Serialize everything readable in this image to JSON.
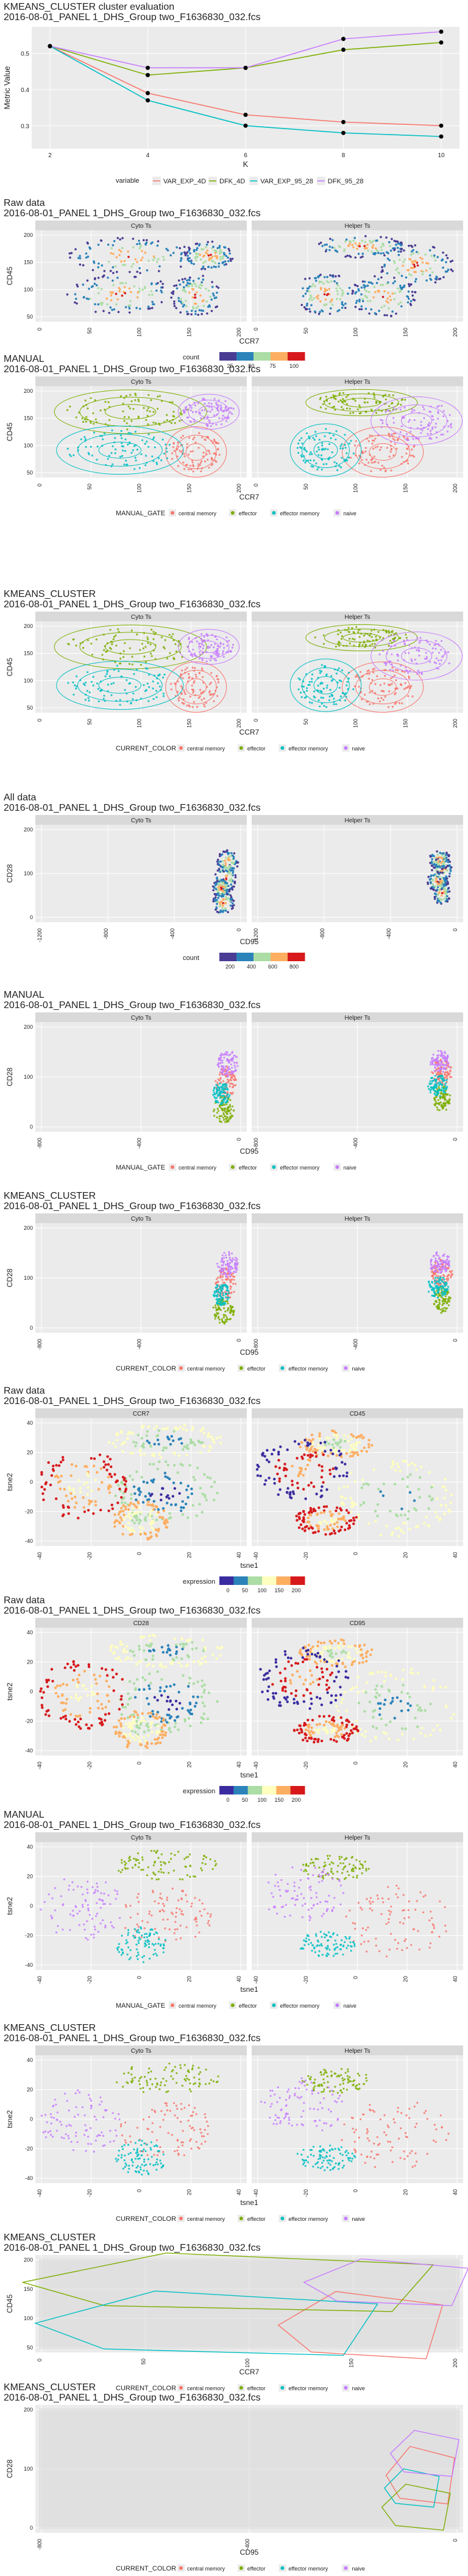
{
  "file": "2016-08-01_PANEL 1_DHS_Group two_F1636830_032.fcs",
  "eval": {
    "title": "KMEANS_CLUSTER cluster evaluation",
    "subtitle": "2016-08-01_PANEL 1_DHS_Group two_F1636830_032.fcs",
    "ylabel": "Metric Value",
    "xlabel": "K",
    "y_ticks": [
      "0.3",
      "0.4",
      "0.5"
    ],
    "x_ticks": [
      "2",
      "4",
      "6",
      "8",
      "10"
    ],
    "legend_title": "variable",
    "legend_items": [
      "VAR_EXP_4D",
      "DFK_4D",
      "VAR_EXP_95_28",
      "DFK_95_28"
    ]
  },
  "palettes": {
    "eval_series": [
      "#f8766d",
      "#7cae00",
      "#00bfc4",
      "#c77cff"
    ],
    "populations": [
      "#f8766d",
      "#7cae00",
      "#00bfc4",
      "#c77cff"
    ],
    "density": [
      "#4a3c94",
      "#2b83ba",
      "#abdda4",
      "#fdae61",
      "#d7191c"
    ],
    "expression": [
      "#3a2ca0",
      "#2b83ba",
      "#abdda4",
      "#ffffbf",
      "#fdae61",
      "#d7191c"
    ],
    "panel_bg": "#ebebeb",
    "strip_bg": "#d9d9d9"
  },
  "pop_labels": [
    "central memory",
    "effector",
    "effector memory",
    "naive"
  ],
  "plots": [
    {
      "title": "Raw data",
      "strips": [
        "Cyto Ts",
        "Helper Ts"
      ],
      "xlabel": "CCR7",
      "ylabel": "CD45",
      "x_ticks": [
        "0",
        "50",
        "100",
        "150",
        "200"
      ],
      "y_ticks": [
        "200",
        "150",
        "100",
        "50"
      ],
      "legend_title": "count",
      "legend_ticks": [
        "25",
        "50",
        "75",
        "100"
      ]
    },
    {
      "title": "MANUAL",
      "strips": [
        "Cyto Ts",
        "Helper Ts"
      ],
      "xlabel": "CCR7",
      "ylabel": "CD45",
      "x_ticks": [
        "0",
        "50",
        "100",
        "150",
        "200"
      ],
      "y_ticks": [
        "200",
        "150",
        "100",
        "50"
      ],
      "legend_title": "MANUAL_GATE"
    },
    {
      "title": "KMEANS_CLUSTER",
      "strips": [
        "Cyto Ts",
        "Helper Ts"
      ],
      "xlabel": "CCR7",
      "ylabel": "CD45",
      "x_ticks": [
        "0",
        "50",
        "100",
        "150",
        "200"
      ],
      "y_ticks": [
        "200",
        "150",
        "100",
        "50"
      ],
      "legend_title": "CURRENT_COLOR"
    },
    {
      "title": "All data",
      "strips": [
        "Cyto Ts",
        "Helper Ts"
      ],
      "xlabel": "CD95",
      "ylabel": "CD28",
      "x_ticks": [
        "-1200",
        "-800",
        "-400",
        "0"
      ],
      "y_ticks": [
        "200",
        "100",
        "0"
      ],
      "legend_title": "count",
      "legend_ticks": [
        "200",
        "400",
        "600",
        "800"
      ]
    },
    {
      "title": "MANUAL",
      "strips": [
        "Cyto Ts",
        "Helper Ts"
      ],
      "xlabel": "CD95",
      "ylabel": "CD28",
      "x_ticks": [
        "-800",
        "-400",
        "0"
      ],
      "y_ticks": [
        "200",
        "100",
        "0"
      ],
      "legend_title": "MANUAL_GATE"
    },
    {
      "title": "KMEANS_CLUSTER",
      "strips": [
        "Cyto Ts",
        "Helper Ts"
      ],
      "xlabel": "CD95",
      "ylabel": "CD28",
      "x_ticks": [
        "-800",
        "-400",
        "0"
      ],
      "y_ticks": [
        "200",
        "100",
        "0"
      ],
      "legend_title": "CURRENT_COLOR"
    },
    {
      "title": "Raw data",
      "strips": [
        "CCR7",
        "CD45"
      ],
      "xlabel": "tsne1",
      "ylabel": "tsne2",
      "x_ticks": [
        "-40",
        "-20",
        "0",
        "20",
        "40"
      ],
      "y_ticks": [
        "40",
        "20",
        "0",
        "-20",
        "-40"
      ],
      "legend_title": "expression",
      "legend_ticks": [
        "0",
        "50",
        "100",
        "150",
        "200"
      ]
    },
    {
      "title": "Raw data",
      "strips": [
        "CD28",
        "CD95"
      ],
      "xlabel": "tsne1",
      "ylabel": "tsne2",
      "x_ticks": [
        "-40",
        "-20",
        "0",
        "20",
        "40"
      ],
      "y_ticks": [
        "40",
        "20",
        "0",
        "-20",
        "-40"
      ],
      "legend_title": "expression",
      "legend_ticks": [
        "0",
        "50",
        "100",
        "150",
        "200"
      ]
    },
    {
      "title": "MANUAL",
      "strips": [
        "Cyto Ts",
        "Helper Ts"
      ],
      "xlabel": "tsne1",
      "ylabel": "tsne2",
      "x_ticks": [
        "-40",
        "-20",
        "0",
        "20",
        "40"
      ],
      "y_ticks": [
        "40",
        "20",
        "0",
        "-20",
        "-40"
      ],
      "legend_title": "MANUAL_GATE"
    },
    {
      "title": "KMEANS_CLUSTER",
      "strips": [
        "Cyto Ts",
        "Helper Ts"
      ],
      "xlabel": "tsne1",
      "ylabel": "tsne2",
      "x_ticks": [
        "-40",
        "-20",
        "0",
        "20",
        "40"
      ],
      "y_ticks": [
        "40",
        "20",
        "0",
        "-20",
        "-40"
      ],
      "legend_title": "CURRENT_COLOR"
    },
    {
      "title": "KMEANS_CLUSTER",
      "strips": [],
      "xlabel": "CCR7",
      "ylabel": "CD45",
      "x_ticks": [
        "0",
        "50",
        "100",
        "150",
        "200"
      ],
      "y_ticks": [
        "200",
        "150",
        "100",
        "50"
      ],
      "legend_title": "CURRENT_COLOR"
    },
    {
      "title": "KMEANS_CLUSTER",
      "strips": [],
      "xlabel": "CD95",
      "ylabel": "CD28",
      "x_ticks": [
        "-800",
        "-400",
        "0"
      ],
      "y_ticks": [
        "200",
        "100",
        "0"
      ],
      "legend_title": "CURRENT_COLOR"
    }
  ],
  "chart_data": [
    {
      "type": "line",
      "title": "KMEANS_CLUSTER cluster evaluation",
      "xlabel": "K",
      "ylabel": "Metric Value",
      "x": [
        2,
        4,
        6,
        8,
        10
      ],
      "xlim": [
        2,
        10
      ],
      "ylim": [
        0.25,
        0.56
      ],
      "series": [
        {
          "name": "VAR_EXP_4D",
          "values": [
            0.52,
            0.39,
            0.33,
            0.31,
            0.3
          ]
        },
        {
          "name": "DFK_4D",
          "values": [
            0.52,
            0.44,
            0.46,
            0.51,
            0.53
          ]
        },
        {
          "name": "VAR_EXP_95_28",
          "values": [
            0.52,
            0.37,
            0.3,
            0.28,
            0.27
          ]
        },
        {
          "name": "DFK_95_28",
          "values": [
            0.52,
            0.46,
            0.46,
            0.54,
            0.56
          ]
        }
      ]
    }
  ]
}
